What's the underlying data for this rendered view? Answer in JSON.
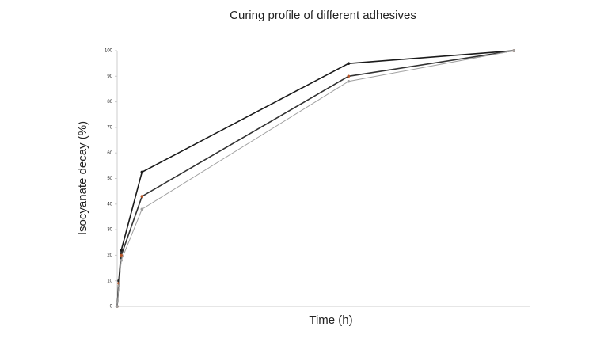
{
  "chart_data": {
    "type": "line",
    "title": "Curing profile of different adhesives",
    "x_label": "Time (h)",
    "y_label": "Isocyanate decay (%)",
    "xlim": [
      0,
      25
    ],
    "ylim": [
      0,
      100
    ],
    "yticks": [
      0,
      10,
      20,
      30,
      40,
      50,
      60,
      70,
      80,
      90,
      100
    ],
    "grid": false,
    "series": [
      {
        "color": "#1a1a1a",
        "marker_color": "#1a1a1a",
        "x": [
          0,
          0.1,
          0.25,
          1.5,
          14,
          24
        ],
        "values": [
          0,
          10,
          22,
          52.5,
          95,
          100
        ]
      },
      {
        "color": "#333333",
        "marker_color": "#b5562a",
        "x": [
          0,
          0.1,
          0.25,
          1.5,
          14,
          24
        ],
        "values": [
          0,
          9,
          20,
          43,
          90,
          100
        ]
      },
      {
        "color": "#a0a0a0",
        "marker_color": "#a0a0a0",
        "x": [
          0,
          0.1,
          0.25,
          1.5,
          14,
          24
        ],
        "values": [
          0,
          8,
          18,
          38,
          88,
          100
        ]
      }
    ]
  }
}
